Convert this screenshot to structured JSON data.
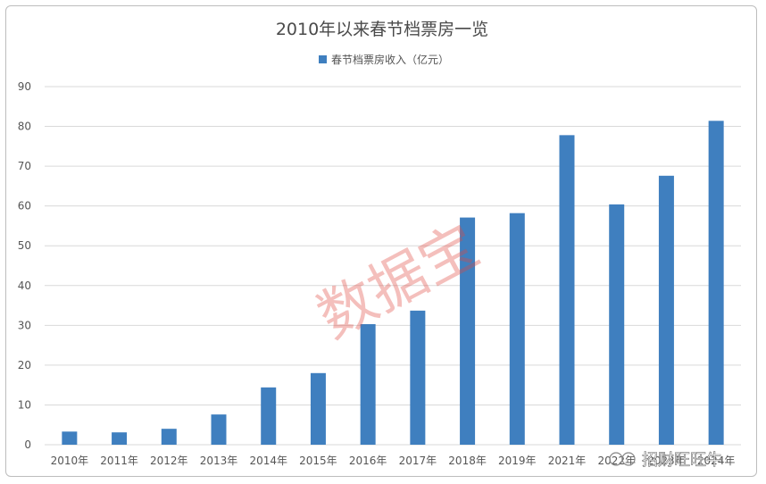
{
  "chart_data": {
    "type": "bar",
    "title": "2010年以来春节档票房一览",
    "categories": [
      "2010年",
      "2011年",
      "2012年",
      "2013年",
      "2014年",
      "2015年",
      "2016年",
      "2017年",
      "2018年",
      "2019年",
      "2021年",
      "2022年",
      "2023年",
      "2024年"
    ],
    "series": [
      {
        "name": "春节档票房收入（亿元）",
        "values": [
          3.3,
          3.1,
          4.0,
          7.6,
          14.4,
          18.0,
          30.3,
          33.7,
          57.1,
          58.2,
          77.8,
          60.4,
          67.6,
          81.4
        ],
        "color": "#3f7fbf"
      }
    ],
    "xlabel": "",
    "ylabel": "",
    "ylim": [
      0,
      90
    ],
    "yticks": [
      0,
      10,
      20,
      30,
      40,
      50,
      60,
      70,
      80,
      90
    ],
    "grid": true,
    "legend": "top-center"
  },
  "watermark": {
    "text": "数据宝",
    "color": "#e0473f"
  },
  "brand": {
    "text": "招财旺旺牛"
  }
}
